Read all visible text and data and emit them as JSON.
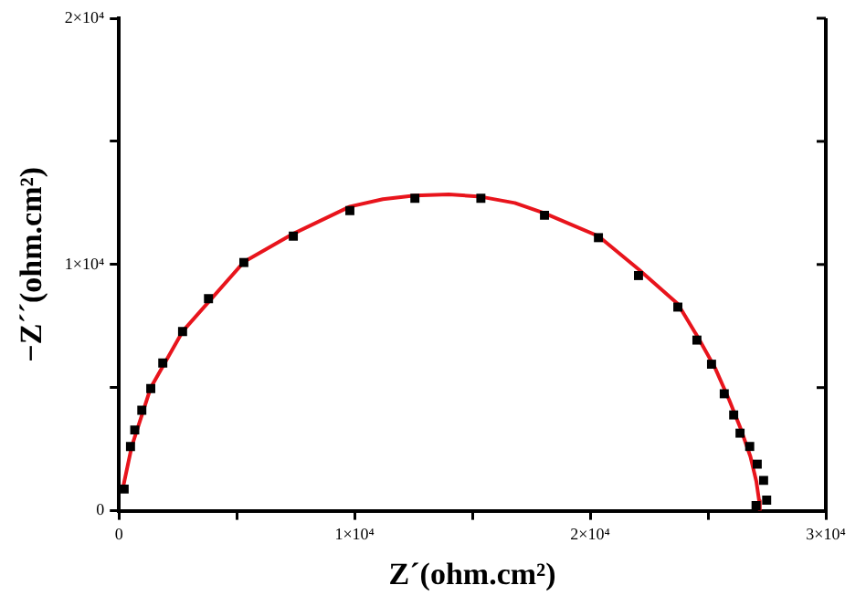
{
  "chart_data": {
    "type": "scatter",
    "xlabel": "Z´(ohm.cm²)",
    "ylabel": "−Z´´(ohm.cm²)",
    "xlim": [
      0,
      30000
    ],
    "ylim": [
      0,
      20000
    ],
    "xticks": [
      0,
      {
        "value": 5000,
        "label": null
      },
      {
        "value": 10000,
        "label": "1×10⁴"
      },
      {
        "value": 15000,
        "label": null
      },
      {
        "value": 20000,
        "label": "2×10⁴"
      },
      {
        "value": 25000,
        "label": null
      },
      {
        "value": 30000,
        "label": "3×10⁴"
      }
    ],
    "yticks": [
      0,
      {
        "value": 5000,
        "label": null
      },
      {
        "value": 10000,
        "label": "1×10⁴"
      },
      {
        "value": 15000,
        "label": null
      },
      {
        "value": 20000,
        "label": "2×10⁴"
      }
    ],
    "grid": false,
    "legend": false,
    "series": [
      {
        "color": "#000000",
        "marker": "square",
        "x": [
          220,
          490,
          670,
          970,
          1350,
          1860,
          2700,
          3800,
          5300,
          7400,
          9800,
          12560,
          15360,
          18060,
          20350,
          22050,
          23720,
          24530,
          25150,
          25690,
          26090,
          26360,
          26770,
          27090,
          27360,
          27490,
          27040
        ],
        "values": [
          880,
          2610,
          3280,
          4080,
          4960,
          6000,
          7280,
          8610,
          10080,
          11150,
          12190,
          12690,
          12690,
          12000,
          11090,
          9550,
          8270,
          6930,
          5950,
          4750,
          3890,
          3150,
          2610,
          1890,
          1230,
          430,
          210
        ]
      },
      {
        "type": "line",
        "color": "#e8141c",
        "marker": "none",
        "line_style": "solid",
        "x": [
          130,
          540,
          1350,
          2700,
          5300,
          7400,
          9800,
          11200,
          12560,
          14000,
          15360,
          16800,
          18060,
          20350,
          22050,
          23720,
          24600,
          25300,
          25900,
          26400,
          26800,
          27050,
          27170,
          27200
        ],
        "values": [
          750,
          2600,
          5000,
          7280,
          10100,
          11250,
          12350,
          12650,
          12800,
          12850,
          12750,
          12500,
          12080,
          11150,
          9810,
          8400,
          7000,
          5800,
          4500,
          3300,
          2200,
          1200,
          400,
          0
        ]
      }
    ]
  }
}
